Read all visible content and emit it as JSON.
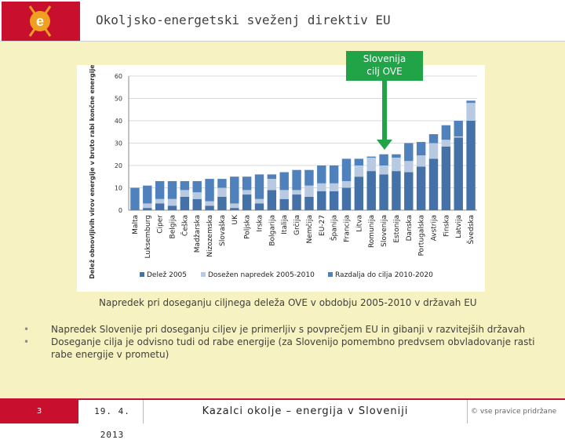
{
  "header": {
    "title": "Okoljsko-energetski sveženj direktiv EU",
    "logo_letter": "e"
  },
  "callout": {
    "line1": "Slovenija",
    "line2": "cilj OVE"
  },
  "chart_data": {
    "type": "bar",
    "stacked": true,
    "ylabel": "Delež obnovljivih virov energije v bruto rabi končne energije [%]",
    "ylim": [
      0,
      60
    ],
    "yticks": [
      0,
      10,
      20,
      30,
      40,
      50,
      60
    ],
    "categories": [
      "Malta",
      "Luksemburg",
      "Ciper",
      "Belgija",
      "Češka",
      "Madžarska",
      "Nizozemska",
      "Slovaška",
      "UK",
      "Poljska",
      "Irska",
      "Bolgarija",
      "Italija",
      "Grčija",
      "Nemčija",
      "EU-27",
      "Španija",
      "Francija",
      "Litva",
      "Romunija",
      "Slovenija",
      "Estonija",
      "Danska",
      "Portugalska",
      "Avstrija",
      "Finska",
      "Latvija",
      "Švedska"
    ],
    "series": [
      {
        "name": "Delež 2005",
        "color": "#4472a8",
        "values": [
          0,
          1,
          3,
          2,
          6,
          5,
          2,
          6,
          1,
          7,
          3,
          9,
          5,
          7,
          6,
          8.5,
          8.5,
          10,
          15,
          17.5,
          16,
          17.5,
          17,
          19.5,
          23,
          28.5,
          32.5,
          40
        ]
      },
      {
        "name": "Dosežen napredek 2005-2010",
        "color": "#b8c9e2",
        "values": [
          0,
          2,
          2,
          3,
          3,
          3,
          2,
          4,
          2,
          2,
          2,
          5,
          4,
          2,
          5,
          3.5,
          3.5,
          3,
          5,
          6,
          4,
          6,
          5,
          5,
          7,
          3,
          0.5,
          8
        ]
      },
      {
        "name": "Razdalja do cilja 2010-2020",
        "color": "#4f81bd",
        "values": [
          10,
          8,
          8,
          8,
          4,
          5,
          10,
          4,
          12,
          6,
          11,
          2,
          8,
          9,
          7,
          8,
          8,
          10,
          3,
          0.5,
          5,
          1.5,
          8,
          6,
          4,
          6.5,
          7,
          1
        ]
      }
    ]
  },
  "caption": "Napredek pri doseganju ciljnega deleža OVE v obdobju 2005-2010 v državah EU",
  "bullets": [
    "Napredek Slovenije pri doseganju ciljev je primerljiv s povprečjem EU in gibanji v razvitejših državah",
    "Doseganje cilja je odvisno tudi od rabe energije (za Slovenijo pomembno predvsem obvladovanje rasti rabe energije v prometu)"
  ],
  "footer": {
    "page": "3",
    "date": "19. 4. 2013",
    "title": "Kazalci okolje – energija v Sloveniji",
    "rights": "© vse pravice pridržane"
  }
}
